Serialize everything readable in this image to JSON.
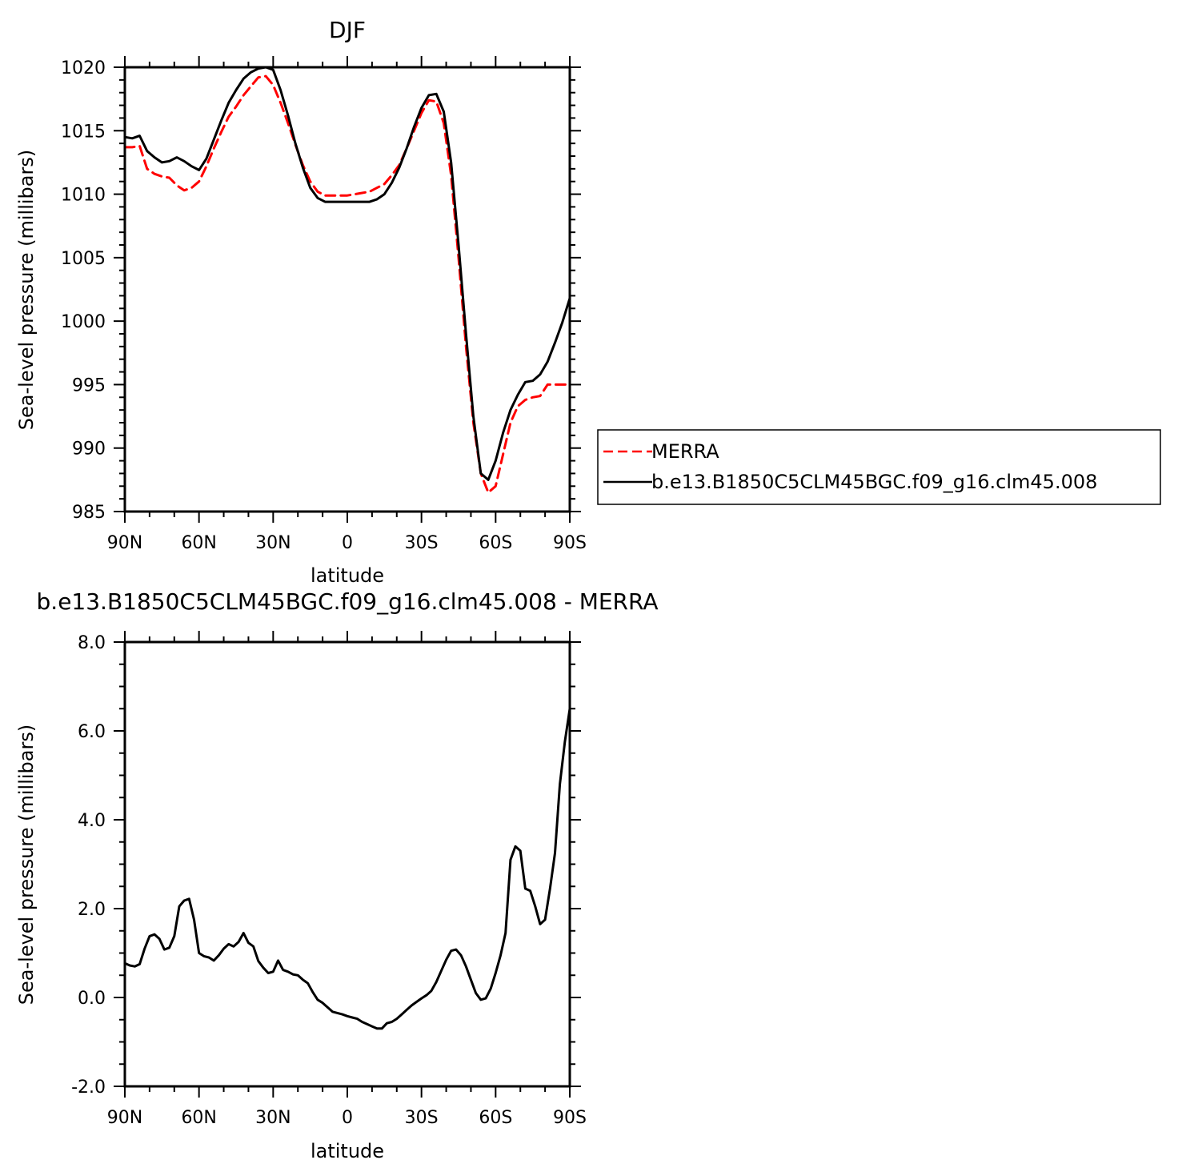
{
  "chart_data": [
    {
      "type": "line",
      "title": "DJF",
      "xlabel": "latitude",
      "ylabel": "Sea-level pressure (millibars)",
      "xlim": [
        90,
        -90
      ],
      "ylim": [
        985,
        1020
      ],
      "x_tick_values": [
        90,
        60,
        30,
        0,
        -30,
        -60,
        -90
      ],
      "x_tick_labels": [
        "90N",
        "60N",
        "30N",
        "0",
        "30S",
        "60S",
        "90S"
      ],
      "y_tick_values": [
        985,
        990,
        995,
        1000,
        1005,
        1010,
        1015,
        1020
      ],
      "y_tick_labels": [
        "985",
        "990",
        "995",
        "1000",
        "1005",
        "1010",
        "1015",
        "1020"
      ],
      "legend_position": "right",
      "series": [
        {
          "name": "MERRA",
          "color": "#ff0000",
          "dash": "dashed",
          "x": [
            90,
            87,
            84,
            81,
            78,
            75,
            72,
            69,
            66,
            63,
            60,
            57,
            54,
            51,
            48,
            45,
            42,
            39,
            36,
            33,
            30,
            27,
            24,
            21,
            18,
            15,
            12,
            9,
            6,
            3,
            0,
            -3,
            -6,
            -9,
            -12,
            -15,
            -18,
            -21,
            -24,
            -27,
            -30,
            -33,
            -36,
            -39,
            -42,
            -45,
            -48,
            -51,
            -54,
            -57,
            -60,
            -63,
            -66,
            -69,
            -72,
            -75,
            -78,
            -81,
            -84,
            -87,
            -90
          ],
          "y": [
            1013.7,
            1013.7,
            1013.8,
            1012.0,
            1011.6,
            1011.4,
            1011.3,
            1010.7,
            1010.3,
            1010.5,
            1011.0,
            1012.2,
            1013.6,
            1014.9,
            1016.1,
            1016.9,
            1017.8,
            1018.5,
            1019.2,
            1019.3,
            1018.6,
            1017.2,
            1015.6,
            1013.9,
            1012.3,
            1011.0,
            1010.2,
            1009.9,
            1009.9,
            1009.9,
            1009.9,
            1010.0,
            1010.1,
            1010.2,
            1010.5,
            1010.8,
            1011.5,
            1012.3,
            1013.6,
            1015.0,
            1016.4,
            1017.4,
            1017.3,
            1015.6,
            1011.5,
            1005.0,
            998.0,
            992.0,
            988.0,
            986.5,
            987.0,
            989.5,
            992.0,
            993.3,
            993.8,
            994.0,
            994.1,
            995.0,
            995.0,
            995.0,
            995.0
          ]
        },
        {
          "name": "b.e13.B1850C5CLM45BGC.f09_g16.clm45.008",
          "color": "#000000",
          "dash": "solid",
          "x": [
            90,
            87,
            84,
            81,
            78,
            75,
            72,
            69,
            66,
            63,
            60,
            57,
            54,
            51,
            48,
            45,
            42,
            39,
            36,
            33,
            30,
            27,
            24,
            21,
            18,
            15,
            12,
            9,
            6,
            3,
            0,
            -3,
            -6,
            -9,
            -12,
            -15,
            -18,
            -21,
            -24,
            -27,
            -30,
            -33,
            -36,
            -39,
            -42,
            -45,
            -48,
            -51,
            -54,
            -57,
            -60,
            -63,
            -66,
            -69,
            -72,
            -75,
            -78,
            -81,
            -84,
            -87,
            -90
          ],
          "y": [
            1014.5,
            1014.4,
            1014.6,
            1013.4,
            1012.9,
            1012.5,
            1012.6,
            1012.9,
            1012.6,
            1012.2,
            1011.9,
            1012.8,
            1014.3,
            1015.8,
            1017.2,
            1018.2,
            1019.1,
            1019.6,
            1019.9,
            1020.0,
            1019.8,
            1018.2,
            1016.2,
            1014.0,
            1012.1,
            1010.5,
            1009.7,
            1009.4,
            1009.4,
            1009.4,
            1009.4,
            1009.4,
            1009.4,
            1009.4,
            1009.6,
            1010.0,
            1010.9,
            1012.1,
            1013.6,
            1015.3,
            1016.8,
            1017.8,
            1017.9,
            1016.5,
            1012.5,
            1006.0,
            999.0,
            992.5,
            988.0,
            987.5,
            989.0,
            991.2,
            993.0,
            994.2,
            995.2,
            995.3,
            995.8,
            996.8,
            998.3,
            999.9,
            1001.8
          ]
        }
      ]
    },
    {
      "type": "line",
      "title": "b.e13.B1850C5CLM45BGC.f09_g16.clm45.008 - MERRA",
      "xlabel": "latitude",
      "ylabel": "Sea-level pressure (millibars)",
      "xlim": [
        90,
        -90
      ],
      "ylim": [
        -2,
        8
      ],
      "x_tick_values": [
        90,
        60,
        30,
        0,
        -30,
        -60,
        -90
      ],
      "x_tick_labels": [
        "90N",
        "60N",
        "30N",
        "0",
        "30S",
        "60S",
        "90S"
      ],
      "y_tick_values": [
        -2,
        0,
        2,
        4,
        6,
        8
      ],
      "y_tick_labels": [
        "-2.0",
        "0.0",
        "2.0",
        "4.0",
        "6.0",
        "8.0"
      ],
      "series": [
        {
          "color": "#000000",
          "dash": "solid",
          "x": [
            90,
            88,
            86,
            84,
            82,
            80,
            78,
            76,
            74,
            72,
            70,
            68,
            66,
            64,
            62,
            60,
            58,
            56,
            54,
            52,
            50,
            48,
            46,
            44,
            42,
            40,
            38,
            36,
            34,
            32,
            30,
            28,
            26,
            24,
            22,
            20,
            18,
            16,
            14,
            12,
            10,
            8,
            6,
            4,
            2,
            0,
            -2,
            -4,
            -6,
            -8,
            -10,
            -12,
            -14,
            -16,
            -18,
            -20,
            -22,
            -24,
            -26,
            -28,
            -30,
            -32,
            -34,
            -36,
            -38,
            -40,
            -42,
            -44,
            -46,
            -48,
            -50,
            -52,
            -54,
            -56,
            -58,
            -60,
            -62,
            -64,
            -66,
            -68,
            -70,
            -72,
            -74,
            -76,
            -78,
            -80,
            -82,
            -84,
            -86,
            -88,
            -90
          ],
          "y": [
            0.77,
            0.72,
            0.7,
            0.75,
            1.1,
            1.38,
            1.42,
            1.32,
            1.08,
            1.12,
            1.38,
            2.05,
            2.18,
            2.22,
            1.75,
            1.0,
            0.93,
            0.9,
            0.83,
            0.95,
            1.1,
            1.2,
            1.15,
            1.25,
            1.45,
            1.23,
            1.15,
            0.82,
            0.67,
            0.55,
            0.58,
            0.83,
            0.62,
            0.58,
            0.52,
            0.5,
            0.4,
            0.32,
            0.12,
            -0.05,
            -0.12,
            -0.22,
            -0.32,
            -0.35,
            -0.38,
            -0.42,
            -0.45,
            -0.48,
            -0.55,
            -0.6,
            -0.65,
            -0.7,
            -0.7,
            -0.58,
            -0.55,
            -0.48,
            -0.38,
            -0.28,
            -0.18,
            -0.1,
            -0.02,
            0.05,
            0.15,
            0.35,
            0.6,
            0.85,
            1.05,
            1.08,
            0.95,
            0.7,
            0.4,
            0.1,
            -0.05,
            -0.02,
            0.2,
            0.55,
            0.95,
            1.45,
            3.1,
            3.4,
            3.3,
            2.45,
            2.4,
            2.05,
            1.65,
            1.75,
            2.45,
            3.25,
            4.8,
            5.75,
            6.5
          ]
        }
      ]
    }
  ]
}
